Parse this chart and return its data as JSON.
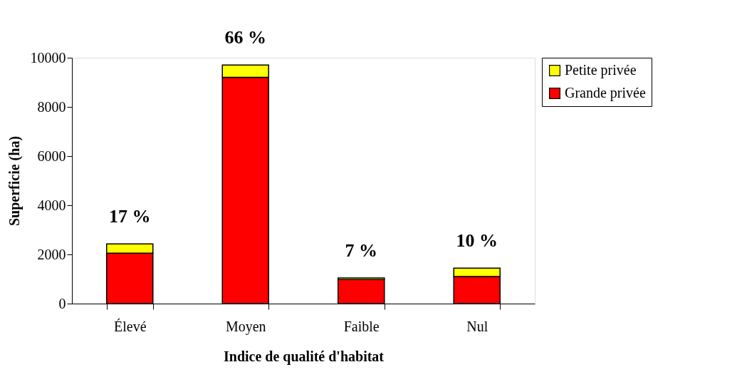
{
  "chart_data": {
    "type": "bar",
    "stacked": true,
    "xlabel": "Indice de qualité d'habitat",
    "ylabel": "Superficie (ha)",
    "categories": [
      "Élevé",
      "Moyen",
      "Faible",
      "Nul"
    ],
    "series": [
      {
        "name": "Grande privée",
        "color": "#ff0000",
        "values": [
          2050,
          9200,
          980,
          1100
        ]
      },
      {
        "name": "Petite privée",
        "color": "#ffff00",
        "values": [
          380,
          500,
          60,
          340
        ]
      }
    ],
    "ylim": [
      0,
      10000
    ],
    "yticks": [
      0,
      2000,
      4000,
      6000,
      8000,
      10000
    ],
    "grid": false,
    "legend": "right",
    "annotations": [
      {
        "text": "17 %",
        "x": "Élevé",
        "y": 2430
      },
      {
        "text": "66 %",
        "x": "Moyen",
        "y": 9700
      },
      {
        "text": "7 %",
        "x": "Faible",
        "y": 1040
      },
      {
        "text": "10 %",
        "x": "Nul",
        "y": 1440
      }
    ]
  }
}
